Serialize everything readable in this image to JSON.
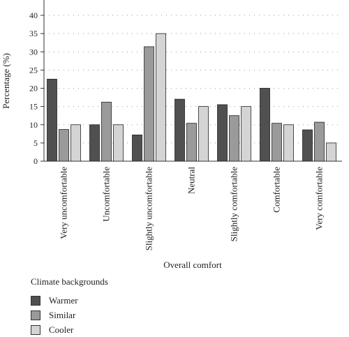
{
  "chart_data": {
    "type": "bar",
    "title": "",
    "xlabel": "Overall comfort",
    "ylabel": "Percentage (%)",
    "ylim": [
      0,
      40
    ],
    "yticks": [
      0,
      5,
      10,
      15,
      20,
      25,
      30,
      35,
      40
    ],
    "grid": "horizontal dotted",
    "categories": [
      "Very uncomfortable",
      "Uncomfortable",
      "Slightly uncomfortable",
      "Neutral",
      "Slightly comfortable",
      "Comfortable",
      "Very comfortable"
    ],
    "series": [
      {
        "name": "Warmer",
        "color": "#505050",
        "values": [
          22.5,
          10,
          7.2,
          17,
          15.5,
          20,
          8.6
        ]
      },
      {
        "name": "Similar",
        "color": "#9a9a9a",
        "values": [
          8.7,
          16.2,
          31.4,
          10.4,
          12.5,
          10.4,
          10.7
        ]
      },
      {
        "name": "Cooler",
        "color": "#d4d4d4",
        "values": [
          10,
          10,
          35,
          15,
          15,
          10,
          5
        ]
      }
    ],
    "legend": {
      "title": "Climate backgrounds",
      "placement": "bottom-left"
    }
  }
}
